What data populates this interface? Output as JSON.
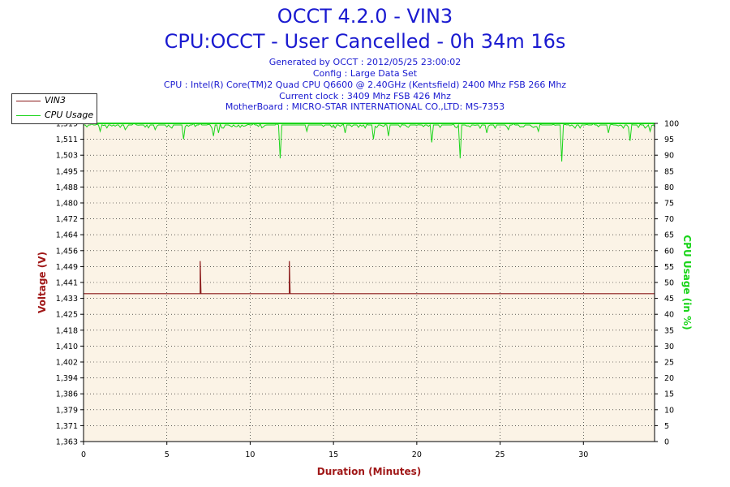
{
  "header": {
    "title": "OCCT 4.2.0 - VIN3",
    "subtitle": "CPU:OCCT - User Cancelled - 0h 34m 16s",
    "info": [
      "Generated by OCCT : 2012/05/25 23:00:02",
      "Config : Large Data Set",
      "CPU : Intel(R) Core(TM)2 Quad CPU Q6600 @ 2.40GHz (Kentsfield) 2400 Mhz FSB 266 Mhz",
      "Current clock : 3409 Mhz FSB 426 Mhz",
      "MotherBoard : MICRO-STAR INTERNATIONAL CO.,LTD: MS-7353"
    ]
  },
  "colors": {
    "title": "#1a1ad0",
    "vin3": "#8b1a1a",
    "cpu": "#19d419",
    "plot_bg": "#fbf3e6",
    "grid": "#000000"
  },
  "chart_data": {
    "type": "line",
    "xlabel": "Duration (Minutes)",
    "ylabel": "Voltage (V)",
    "y2label": "CPU Usage (in %)",
    "xlim": [
      0,
      34.27
    ],
    "ylim": [
      1.363,
      1.519
    ],
    "y2lim": [
      0,
      100
    ],
    "x_ticks": [
      "0",
      "5",
      "10",
      "15",
      "20",
      "25",
      "30"
    ],
    "x_tick_values": [
      0,
      5,
      10,
      15,
      20,
      25,
      30
    ],
    "y_ticks": [
      "1,519",
      "1,511",
      "1,503",
      "1,495",
      "1,488",
      "1,480",
      "1,472",
      "1,464",
      "1,456",
      "1,449",
      "1,441",
      "1,433",
      "1,425",
      "1,418",
      "1,410",
      "1,402",
      "1,394",
      "1,386",
      "1,379",
      "1,371",
      "1,363"
    ],
    "y2_ticks": [
      "100",
      "95",
      "90",
      "85",
      "80",
      "75",
      "70",
      "65",
      "60",
      "55",
      "50",
      "45",
      "40",
      "35",
      "30",
      "25",
      "20",
      "15",
      "10",
      "5",
      "0"
    ],
    "grid": true,
    "legend_position": "top-left",
    "series": [
      {
        "name": "VIN3",
        "axis": "left",
        "baseline": 1.4355,
        "points": [
          [
            0,
            1.4355
          ],
          [
            7.0,
            1.4355
          ],
          [
            7.0,
            1.4515
          ],
          [
            7.05,
            1.4355
          ],
          [
            12.35,
            1.4355
          ],
          [
            12.35,
            1.4515
          ],
          [
            12.4,
            1.4355
          ],
          [
            34.27,
            1.4355
          ]
        ]
      },
      {
        "name": "CPU Usage",
        "axis": "right",
        "baseline": 99.5,
        "dips": [
          [
            1.0,
            97.5
          ],
          [
            2.5,
            98
          ],
          [
            4.3,
            98
          ],
          [
            5.3,
            98.5
          ],
          [
            6.0,
            95
          ],
          [
            7.8,
            96
          ],
          [
            8.1,
            97
          ],
          [
            11.8,
            89
          ],
          [
            13.4,
            97.5
          ],
          [
            15.7,
            97
          ],
          [
            17.4,
            95
          ],
          [
            18.3,
            96
          ],
          [
            20.9,
            94
          ],
          [
            22.6,
            89
          ],
          [
            24.2,
            97
          ],
          [
            25.5,
            98
          ],
          [
            27.3,
            97.5
          ],
          [
            28.7,
            88
          ],
          [
            31.5,
            97
          ],
          [
            32.8,
            94.5
          ],
          [
            34.0,
            97.5
          ]
        ]
      }
    ]
  }
}
